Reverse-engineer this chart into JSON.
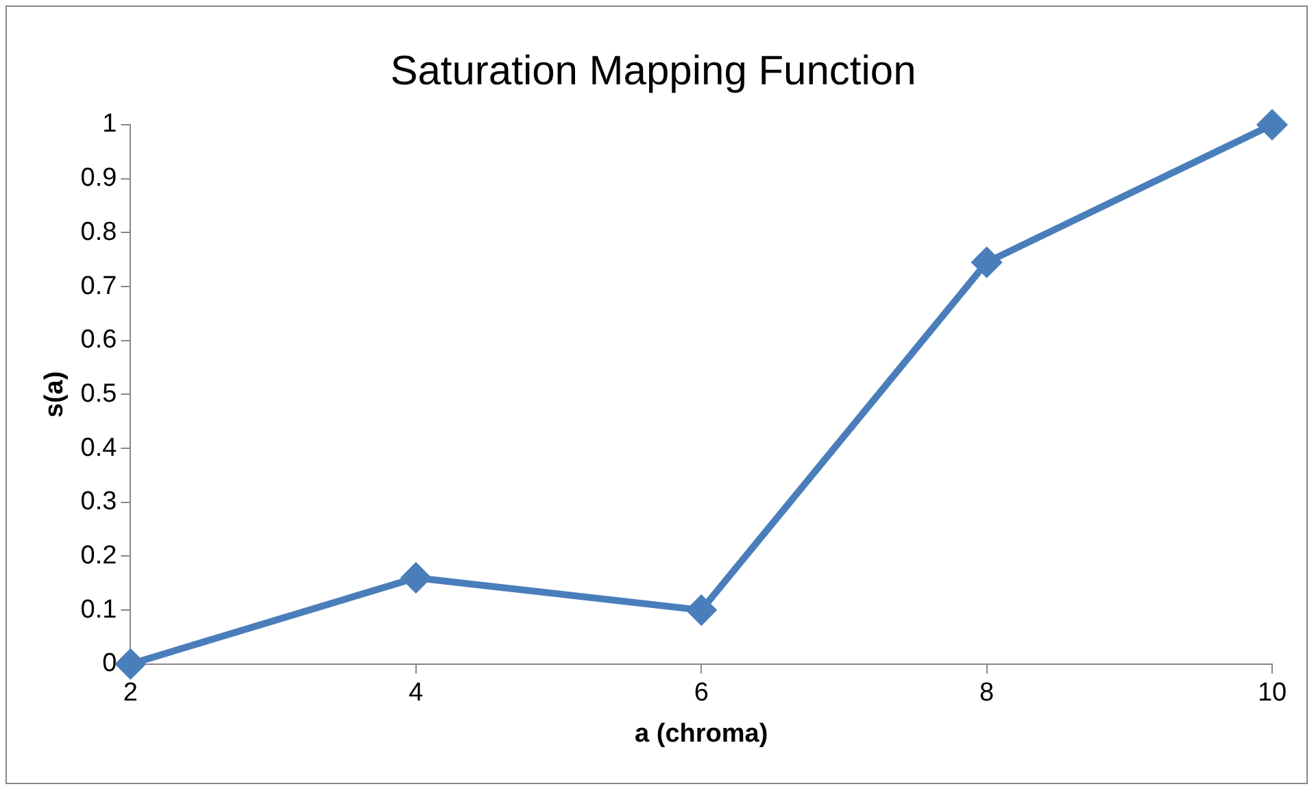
{
  "chart_data": {
    "type": "line",
    "title": "Saturation Mapping Function",
    "xlabel": "a (chroma)",
    "ylabel": "s(a)",
    "x": [
      2,
      4,
      6,
      8,
      10
    ],
    "series": [
      {
        "color": "#4a7ebb",
        "values": [
          0,
          0.16,
          0.1,
          0.745,
          1
        ]
      }
    ],
    "xlim": [
      2,
      10
    ],
    "xticks": [
      2,
      4,
      6,
      8,
      10
    ],
    "ylim": [
      0,
      1
    ],
    "yticks": [
      0,
      0.1,
      0.2,
      0.3,
      0.4,
      0.5,
      0.6,
      0.7,
      0.8,
      0.9,
      1
    ],
    "grid": false,
    "legend": false,
    "marker": "diamond",
    "line_style": "solid"
  }
}
